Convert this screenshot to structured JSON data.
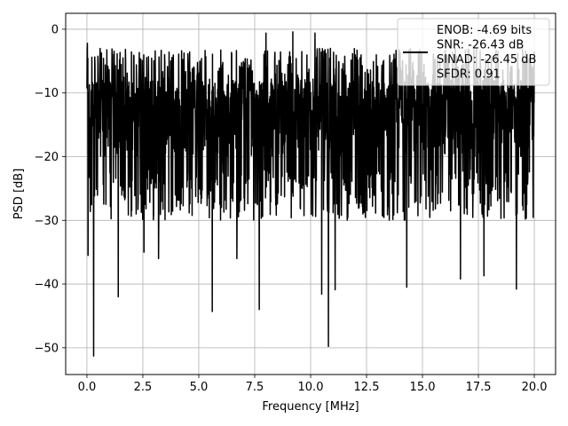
{
  "chart_data": {
    "type": "line",
    "xlabel": "Frequency [MHz]",
    "ylabel": "PSD [dB]",
    "xlim": [
      -0.95,
      20.95
    ],
    "ylim": [
      -54.2,
      2.5
    ],
    "grid": true,
    "xticks": [
      {
        "value": 0.0,
        "label": "0.0"
      },
      {
        "value": 2.5,
        "label": "2.5"
      },
      {
        "value": 5.0,
        "label": "5.0"
      },
      {
        "value": 7.5,
        "label": "7.5"
      },
      {
        "value": 10.0,
        "label": "10.0"
      },
      {
        "value": 12.5,
        "label": "12.5"
      },
      {
        "value": 15.0,
        "label": "15.0"
      },
      {
        "value": 17.5,
        "label": "17.5"
      },
      {
        "value": 20.0,
        "label": "20.0"
      }
    ],
    "yticks": [
      {
        "value": 0,
        "label": "0"
      },
      {
        "value": -10,
        "label": "−10"
      },
      {
        "value": -20,
        "label": "−20"
      },
      {
        "value": -30,
        "label": "−30"
      },
      {
        "value": -40,
        "label": "−40"
      },
      {
        "value": -50,
        "label": "−50"
      }
    ],
    "legend": {
      "placement": "upper-right",
      "lines": [
        "ENOB: -4.69 bits",
        "SNR: -26.43 dB",
        "SINAD: -26.45 dB",
        "SFDR: 0.91"
      ]
    },
    "series": [
      {
        "color": "#000000",
        "x_range": [
          0.0,
          20.0
        ],
        "points": 2000,
        "typical_range": [
          -24,
          -2
        ],
        "notable_minima": [
          {
            "x": 0.3,
            "y": -51.3
          },
          {
            "x": 0.05,
            "y": -35.5
          },
          {
            "x": 1.4,
            "y": -42.0
          },
          {
            "x": 2.55,
            "y": -35.0
          },
          {
            "x": 3.2,
            "y": -36.0
          },
          {
            "x": 5.6,
            "y": -44.3
          },
          {
            "x": 6.7,
            "y": -36.0
          },
          {
            "x": 7.7,
            "y": -44.0
          },
          {
            "x": 10.5,
            "y": -41.6
          },
          {
            "x": 10.8,
            "y": -49.8
          },
          {
            "x": 11.1,
            "y": -40.9
          },
          {
            "x": 14.3,
            "y": -40.5
          },
          {
            "x": 16.7,
            "y": -39.2
          },
          {
            "x": 17.75,
            "y": -38.7
          },
          {
            "x": 19.2,
            "y": -40.8
          }
        ],
        "notable_maxima": [
          {
            "x": 0.02,
            "y": -2.2
          },
          {
            "x": 8.0,
            "y": -0.6
          },
          {
            "x": 9.2,
            "y": -0.4
          },
          {
            "x": 10.2,
            "y": -0.6
          }
        ]
      }
    ]
  }
}
